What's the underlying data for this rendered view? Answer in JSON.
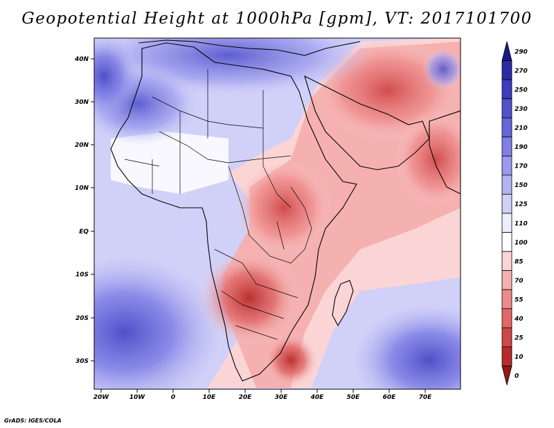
{
  "title": "Geopotential Height at 1000hPa [gpm], VT: 2017101700",
  "credit": "GrADS: IGES/COLA",
  "y_ticks": [
    "40N",
    "30N",
    "20N",
    "10N",
    "EQ",
    "10S",
    "20S",
    "30S"
  ],
  "x_ticks": [
    "20W",
    "10W",
    "0",
    "10E",
    "20E",
    "30E",
    "40E",
    "50E",
    "60E",
    "70E"
  ],
  "colorbar": {
    "levels": [
      "290",
      "270",
      "250",
      "230",
      "210",
      "190",
      "170",
      "150",
      "125",
      "110",
      "100",
      "85",
      "70",
      "55",
      "40",
      "25",
      "10",
      "0"
    ],
    "colors": [
      "#1a1a8c",
      "#2b2ba8",
      "#3d3dbd",
      "#5252cc",
      "#6666dd",
      "#7f7fe6",
      "#9999ee",
      "#b3b3f2",
      "#d0d0f8",
      "#eeeeff",
      "#ffffff",
      "#fbd5d5",
      "#f5b0b0",
      "#ee8a8a",
      "#e06868",
      "#cf4848",
      "#b82b2b",
      "#9a1515"
    ]
  }
}
